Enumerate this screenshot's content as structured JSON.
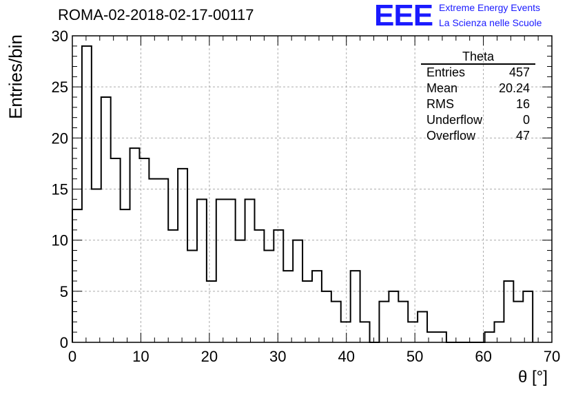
{
  "header": {
    "run_title": "ROMA-02-2018-02-17-00117",
    "logo_text": "EEE",
    "logo_line1": "Extreme Energy Events",
    "logo_line2": "La Scienza nelle Scuole"
  },
  "stats_box": {
    "title": "Theta",
    "rows": [
      {
        "label": "Entries",
        "value": "457"
      },
      {
        "label": "Mean",
        "value": "20.24"
      },
      {
        "label": "RMS",
        "value": "16"
      },
      {
        "label": "Underflow",
        "value": "0"
      },
      {
        "label": "Overflow",
        "value": "47"
      }
    ]
  },
  "colors": {
    "logo": "#1a1aff",
    "line": "#000000",
    "grid": "#aaaaaa"
  },
  "chart_data": {
    "type": "bar",
    "style": "step histogram",
    "xlabel": "θ [°]",
    "ylabel": "Entries/bin",
    "xlim": [
      0,
      70
    ],
    "ylim": [
      0,
      30
    ],
    "x_ticks": [
      0,
      10,
      20,
      30,
      40,
      50,
      60,
      70
    ],
    "y_ticks": [
      0,
      5,
      10,
      15,
      20,
      25,
      30
    ],
    "grid": true,
    "bin_width": 1.4,
    "values": [
      13,
      29,
      15,
      24,
      18,
      13,
      19,
      18,
      16,
      16,
      11,
      17,
      9,
      14,
      6,
      14,
      14,
      10,
      14,
      11,
      9,
      11,
      7,
      10,
      6,
      7,
      5,
      4,
      2,
      7,
      2,
      0,
      4,
      5,
      4,
      2,
      3,
      1,
      1,
      0,
      0,
      0,
      0,
      1,
      2,
      6,
      4,
      5
    ]
  }
}
